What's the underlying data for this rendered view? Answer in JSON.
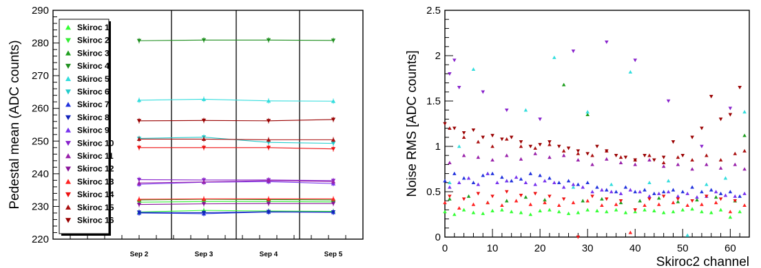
{
  "colors": {
    "Skiroc 1": "#33ff33",
    "Skiroc 2": "#33ee33",
    "Skiroc 3": "#1f9f1f",
    "Skiroc 4": "#1f8f1f",
    "Skiroc 5": "#33dddd",
    "Skiroc 6": "#22cccc",
    "Skiroc 7": "#2233dd",
    "Skiroc 8": "#1122bb",
    "Skiroc 9": "#7733ee",
    "Skiroc 10": "#8822cc",
    "Skiroc 11": "#9922aa",
    "Skiroc 12": "#881199",
    "Skiroc 13": "#ff2222",
    "Skiroc 14": "#ee1111",
    "Skiroc 15": "#aa1111",
    "Skiroc 16": "#990000"
  },
  "chart_data": [
    {
      "type": "line",
      "title": "",
      "ylabel": "Pedestal mean (ADC counts)",
      "xlabel": "",
      "categories": [
        "Sep 2",
        "Sep 3",
        "Sep 4",
        "Sep 5"
      ],
      "ylim": [
        220,
        290
      ],
      "yticks": [
        "220",
        "230",
        "240",
        "250",
        "260",
        "270",
        "280",
        "290"
      ],
      "legend_position": "top-left",
      "grid": false,
      "series": [
        {
          "name": "Skiroc 1",
          "values": [
            228.3,
            228.8,
            228.6,
            228.5
          ]
        },
        {
          "name": "Skiroc 2",
          "values": [
            231.3,
            231.5,
            231.5,
            231.4
          ]
        },
        {
          "name": "Skiroc 3",
          "values": [
            232.0,
            232.2,
            232.1,
            232.0
          ]
        },
        {
          "name": "Skiroc 4",
          "values": [
            280.7,
            280.9,
            280.9,
            280.8
          ]
        },
        {
          "name": "Skiroc 5",
          "values": [
            262.5,
            262.8,
            262.3,
            262.2
          ]
        },
        {
          "name": "Skiroc 6",
          "values": [
            250.8,
            251.2,
            249.6,
            249.3
          ]
        },
        {
          "name": "Skiroc 7",
          "values": [
            228.0,
            227.8,
            228.3,
            228.2
          ]
        },
        {
          "name": "Skiroc 8",
          "values": [
            228.2,
            228.1,
            228.4,
            228.3
          ]
        },
        {
          "name": "Skiroc 9",
          "values": [
            236.8,
            237.4,
            237.6,
            237.0
          ]
        },
        {
          "name": "Skiroc 10",
          "values": [
            238.2,
            238.1,
            238.1,
            237.9
          ]
        },
        {
          "name": "Skiroc 11",
          "values": [
            237.2,
            237.5,
            237.9,
            237.6
          ]
        },
        {
          "name": "Skiroc 12",
          "values": [
            230.6,
            230.8,
            230.9,
            230.9
          ]
        },
        {
          "name": "Skiroc 13",
          "values": [
            232.2,
            232.3,
            232.3,
            232.3
          ]
        },
        {
          "name": "Skiroc 14",
          "values": [
            248.0,
            248.0,
            248.0,
            247.6
          ]
        },
        {
          "name": "Skiroc 15",
          "values": [
            250.6,
            250.6,
            250.4,
            250.4
          ]
        },
        {
          "name": "Skiroc 16",
          "values": [
            256.2,
            256.3,
            256.2,
            256.6
          ]
        }
      ]
    },
    {
      "type": "scatter",
      "title": "",
      "xlabel": "Skiroc2 channel",
      "ylabel": "Noise RMS [ADC counts]",
      "xlim": [
        0,
        64
      ],
      "ylim": [
        0,
        2.5
      ],
      "xticks": [
        "0",
        "10",
        "20",
        "30",
        "40",
        "50",
        "60"
      ],
      "yticks": [
        "0",
        "0.5",
        "1",
        "1.5",
        "2",
        "2.5"
      ],
      "grid": false,
      "series": [
        {
          "name": "Skiroc 1",
          "x": [
            0,
            2,
            4,
            6,
            8,
            10,
            12,
            14,
            16,
            18,
            20,
            22,
            24,
            26,
            28,
            30,
            32,
            34,
            36,
            38,
            40,
            42,
            44,
            46,
            48,
            50,
            52,
            54,
            56,
            58,
            60,
            62
          ],
          "y": [
            0.28,
            0.25,
            0.3,
            0.27,
            0.26,
            0.29,
            0.3,
            0.28,
            0.27,
            0.25,
            0.29,
            0.3,
            0.28,
            0.26,
            0.27,
            0.3,
            0.29,
            0.28,
            0.3,
            0.27,
            0.28,
            0.3,
            0.29,
            0.27,
            0.28,
            0.3,
            0.31,
            0.28,
            0.27,
            0.3,
            0.22,
            0.28
          ]
        },
        {
          "name": "Skiroc 3",
          "x": [
            1,
            5,
            9,
            13,
            17,
            21,
            25,
            29,
            30,
            33,
            37,
            41,
            45,
            49,
            53,
            57,
            61,
            63
          ],
          "y": [
            0.42,
            0.45,
            0.38,
            0.4,
            0.44,
            0.41,
            1.68,
            0.4,
            1.35,
            0.42,
            0.38,
            0.4,
            0.43,
            0.39,
            0.41,
            0.44,
            0.4,
            1.12
          ]
        },
        {
          "name": "Skiroc 5",
          "x": [
            1,
            3,
            6,
            9,
            13,
            17,
            23,
            27,
            30,
            35,
            39,
            43,
            47,
            51,
            55,
            59,
            63
          ],
          "y": [
            0.6,
            1.0,
            1.85,
            0.7,
            0.62,
            1.4,
            1.98,
            0.55,
            1.38,
            0.58,
            1.82,
            0.6,
            0.62,
            0.02,
            0.58,
            0.65,
            1.38
          ]
        },
        {
          "name": "Skiroc 7",
          "x": [
            0,
            2,
            4,
            6,
            8,
            10,
            12,
            14,
            16,
            18,
            20,
            22,
            24,
            26,
            28,
            30,
            32,
            34,
            36,
            38,
            40,
            42,
            44,
            46,
            48,
            50,
            52,
            54,
            56,
            58,
            60,
            62
          ],
          "y": [
            0.62,
            0.7,
            0.65,
            0.6,
            0.68,
            0.7,
            0.66,
            0.62,
            0.64,
            0.7,
            0.68,
            0.65,
            0.6,
            0.62,
            0.58,
            0.6,
            0.55,
            0.52,
            0.5,
            0.55,
            0.5,
            0.52,
            0.48,
            0.5,
            0.52,
            0.5,
            0.55,
            0.5,
            0.52,
            0.48,
            0.5,
            0.45
          ]
        },
        {
          "name": "Skiroc 9",
          "x": [
            1,
            3,
            5,
            7,
            9,
            11,
            13,
            15,
            17,
            19,
            21,
            23,
            25,
            27,
            29,
            31,
            33,
            35,
            37,
            39,
            41,
            43,
            45,
            47,
            49,
            51,
            53,
            55,
            57,
            59,
            61,
            63
          ],
          "y": [
            0.55,
            0.6,
            0.65,
            0.58,
            0.7,
            0.6,
            0.62,
            0.66,
            0.6,
            0.58,
            0.62,
            0.6,
            0.55,
            0.58,
            0.55,
            0.5,
            0.52,
            0.5,
            0.48,
            0.52,
            0.5,
            0.45,
            0.48,
            0.5,
            0.45,
            0.48,
            0.44,
            0.45,
            0.5,
            0.46,
            0.45,
            0.48
          ]
        },
        {
          "name": "Skiroc 10",
          "x": [
            1,
            2,
            3,
            8,
            13,
            20,
            27,
            34,
            40,
            47,
            54,
            60
          ],
          "y": [
            1.8,
            1.95,
            1.65,
            1.6,
            1.4,
            1.3,
            2.05,
            2.15,
            1.95,
            1.5,
            1.0,
            1.42
          ]
        },
        {
          "name": "Skiroc 11",
          "x": [
            1,
            4,
            7,
            10,
            13,
            16,
            19,
            22,
            25,
            28,
            31,
            34,
            37,
            40,
            43,
            46,
            49,
            52,
            55,
            58,
            61,
            63
          ],
          "y": [
            0.82,
            0.9,
            0.88,
            0.85,
            0.9,
            0.86,
            0.92,
            0.88,
            0.9,
            0.85,
            0.8,
            0.86,
            0.82,
            0.8,
            0.85,
            0.78,
            0.8,
            0.75,
            0.8,
            0.76,
            0.8,
            0.75
          ]
        },
        {
          "name": "Skiroc 13",
          "x": [
            0,
            3,
            6,
            9,
            12,
            15,
            18,
            21,
            24,
            27,
            30,
            33,
            36,
            39,
            42,
            45,
            48,
            51,
            54,
            57,
            60,
            63
          ],
          "y": [
            0.38,
            0.32,
            0.36,
            0.38,
            0.35,
            0.4,
            0.36,
            0.38,
            0.35,
            0.38,
            0.4,
            0.35,
            0.36,
            0.05,
            0.35,
            0.36,
            0.38,
            0.35,
            0.36,
            0.38,
            0.28,
            0.35
          ]
        },
        {
          "name": "Skiroc 14",
          "x": [
            1,
            4,
            7,
            10,
            13,
            16,
            19,
            22,
            25,
            28,
            31,
            34,
            37,
            40,
            43,
            46,
            49,
            52,
            55,
            58,
            61
          ],
          "y": [
            0.45,
            0.42,
            0.48,
            0.45,
            0.5,
            0.46,
            0.48,
            0.45,
            0.42,
            0.0,
            0.45,
            0.42,
            0.4,
            0.3,
            0.42,
            0.45,
            0.42,
            0.4,
            0.45,
            0.42,
            0.4
          ]
        },
        {
          "name": "Skiroc 15",
          "x": [
            1,
            4,
            7,
            10,
            13,
            16,
            19,
            22,
            25,
            28,
            31,
            34,
            37,
            40,
            43,
            46,
            49,
            52,
            55,
            58,
            61,
            63
          ],
          "y": [
            1.2,
            1.1,
            1.05,
            1.0,
            1.08,
            1.0,
            0.98,
            1.02,
            0.95,
            0.92,
            0.9,
            0.95,
            0.88,
            0.85,
            0.9,
            0.82,
            0.88,
            0.85,
            0.9,
            0.85,
            0.92,
            0.95
          ]
        },
        {
          "name": "Skiroc 16",
          "x": [
            0,
            2,
            4,
            6,
            8,
            10,
            12,
            14,
            16,
            18,
            20,
            22,
            24,
            26,
            28,
            30,
            32,
            34,
            36,
            38,
            40,
            42,
            44,
            46,
            48,
            50,
            52,
            54,
            56,
            58,
            60,
            62
          ],
          "y": [
            1.25,
            1.2,
            1.15,
            1.18,
            1.1,
            1.12,
            1.08,
            1.1,
            1.05,
            1.0,
            1.02,
            1.05,
            1.0,
            0.98,
            0.95,
            0.92,
            1.0,
            0.95,
            0.9,
            0.88,
            0.85,
            0.9,
            0.85,
            0.88,
            1.05,
            0.9,
            1.1,
            1.2,
            1.55,
            1.3,
            1.35,
            1.65
          ]
        }
      ]
    }
  ]
}
